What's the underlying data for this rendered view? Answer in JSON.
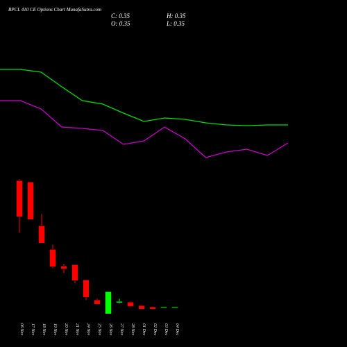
{
  "chart_data": {
    "type": "candlestick",
    "title": "BPCL 410 CE Options Chart MunafaSutra.com",
    "ohlc_labels": [
      "C: 0.35",
      "H: 0.35",
      "O: 0.35",
      "L: 0.35"
    ],
    "categories": [
      "06 Nov",
      "17 Nov",
      "18 Nov",
      "19 Nov",
      "20 Nov",
      "21 Nov",
      "24 Nov",
      "25 Nov",
      "26 Nov",
      "27 Nov",
      "28 Nov",
      "01 Dec",
      "02 Dec",
      "03 Dec",
      "04 Dec"
    ],
    "open": [
      5.81,
      5.75,
      3.86,
      2.84,
      2.12,
      2.18,
      1.52,
      0.65,
      0.05,
      0.53,
      0.56,
      0.41,
      0.35,
      0.33,
      0.35
    ],
    "high": [
      5.87,
      5.75,
      4.37,
      3.05,
      2.21,
      2.18,
      1.52,
      0.71,
      1.01,
      0.71,
      0.59,
      0.41,
      0.35,
      0.35,
      0.35
    ],
    "low": [
      3.56,
      4.13,
      3.11,
      2.03,
      1.82,
      1.37,
      0.65,
      0.47,
      0.05,
      0.5,
      0.35,
      0.26,
      0.26,
      0.32,
      0.35
    ],
    "close": [
      4.25,
      4.13,
      3.11,
      2.09,
      2.0,
      1.49,
      0.77,
      0.47,
      1.01,
      0.59,
      0.38,
      0.26,
      0.26,
      0.35,
      0.35
    ],
    "up_color": "#00ff00",
    "down_color": "#ff0000",
    "ylim": [
      0,
      6
    ],
    "y2lim": [
      0,
      6
    ],
    "series": [
      {
        "name": null,
        "color": "#00e000",
        "axis": "y2",
        "values": [
          4,
          4,
          3.92,
          3.5,
          3.1,
          3,
          2.74,
          2.5,
          2.6,
          2.56,
          2.46,
          2.4,
          2.38,
          2.4,
          2.4
        ]
      },
      {
        "name": null,
        "color": "#cc00cc",
        "axis": "y2",
        "values": [
          3.1,
          3.1,
          2.86,
          2.34,
          2.3,
          2.24,
          1.84,
          1.94,
          2.34,
          2,
          1.46,
          1.62,
          1.7,
          1.52,
          1.88
        ]
      }
    ]
  }
}
